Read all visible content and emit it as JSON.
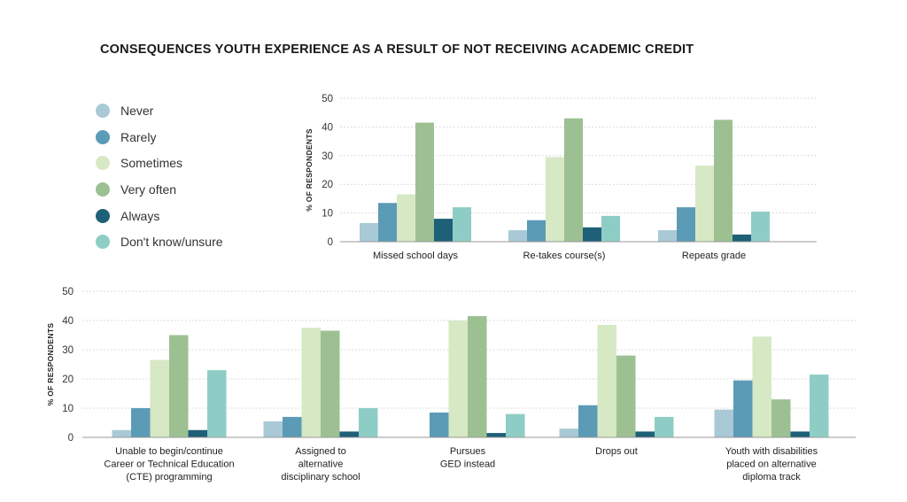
{
  "title": "CONSEQUENCES YOUTH EXPERIENCE AS A RESULT OF NOT RECEIVING ACADEMIC CREDIT",
  "legend": {
    "items": [
      {
        "label": "Never",
        "color": "#a9c9d6"
      },
      {
        "label": "Rarely",
        "color": "#5b9bb5"
      },
      {
        "label": "Sometimes",
        "color": "#d6e8c4"
      },
      {
        "label": "Very often",
        "color": "#9cc092"
      },
      {
        "label": "Always",
        "color": "#1e6077"
      },
      {
        "label": "Don't know/unsure",
        "color": "#8ecdc5"
      }
    ]
  },
  "chart_data": [
    {
      "type": "bar",
      "ylabel": "% OF RESPONDENTS",
      "ylim": [
        0,
        50
      ],
      "yticks": [
        0,
        10,
        20,
        30,
        40,
        50
      ],
      "categories": [
        [
          "Missed school days"
        ],
        [
          "Re-takes course(s)"
        ],
        [
          "Repeats grade"
        ]
      ],
      "series": [
        {
          "name": "Never",
          "values": [
            6.5,
            4,
            4
          ]
        },
        {
          "name": "Rarely",
          "values": [
            13.5,
            7.5,
            12
          ]
        },
        {
          "name": "Sometimes",
          "values": [
            16.5,
            29.5,
            26.5
          ]
        },
        {
          "name": "Very often",
          "values": [
            41.5,
            43,
            42.5
          ]
        },
        {
          "name": "Always",
          "values": [
            8,
            5,
            2.5
          ]
        },
        {
          "name": "Don't know/unsure",
          "values": [
            12,
            9,
            10.5
          ]
        }
      ]
    },
    {
      "type": "bar",
      "ylabel": "% OF RESPONDENTS",
      "ylim": [
        0,
        50
      ],
      "yticks": [
        0,
        10,
        20,
        30,
        40,
        50
      ],
      "categories": [
        [
          "Unable to begin/continue",
          "Career or Technical Education",
          "(CTE) programming"
        ],
        [
          "Assigned to",
          "alternative",
          "disciplinary school"
        ],
        [
          "Pursues",
          "GED instead"
        ],
        [
          "Drops out"
        ],
        [
          "Youth with disabilities",
          "placed on alternative",
          "diploma track"
        ]
      ],
      "series": [
        {
          "name": "Never",
          "values": [
            2.5,
            5.5,
            0,
            3,
            9.5
          ]
        },
        {
          "name": "Rarely",
          "values": [
            10,
            7,
            8.5,
            11,
            19.5
          ]
        },
        {
          "name": "Sometimes",
          "values": [
            26.5,
            37.5,
            40,
            38.5,
            34.5
          ]
        },
        {
          "name": "Very often",
          "values": [
            35,
            36.5,
            41.5,
            28,
            13
          ]
        },
        {
          "name": "Always",
          "values": [
            2.5,
            2,
            1.5,
            2,
            2
          ]
        },
        {
          "name": "Don't know/unsure",
          "values": [
            23,
            10,
            8,
            7,
            21.5
          ]
        }
      ]
    }
  ]
}
